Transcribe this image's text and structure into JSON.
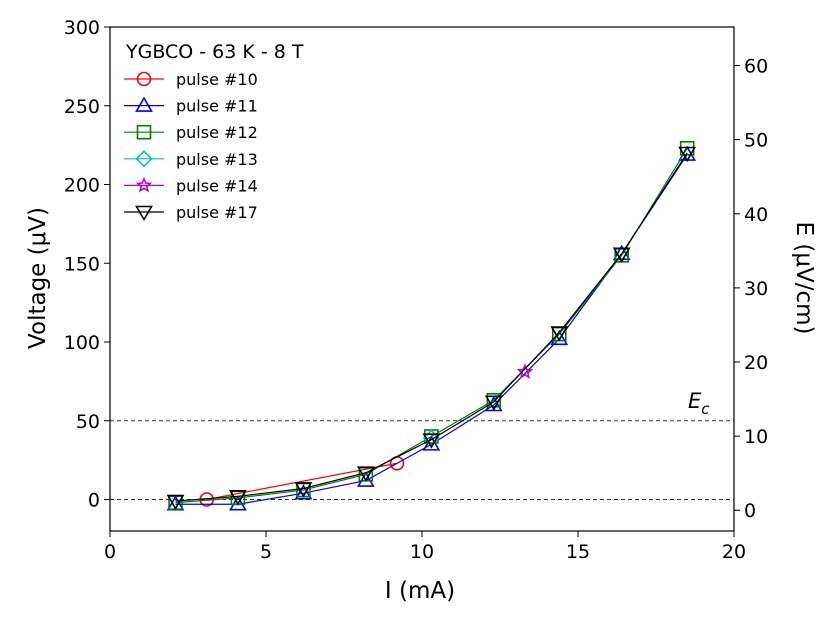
{
  "chart_data": {
    "type": "line",
    "title": "YGBCO - 63 K - 8 T",
    "xlabel": "I (mA)",
    "ylabel": "Voltage (μV)",
    "y2label": "E (μV/cm)",
    "xlim": [
      0,
      20
    ],
    "ylim": [
      -20,
      300
    ],
    "y2lim": [
      -2.8,
      65.2
    ],
    "xticks": [
      0,
      5,
      10,
      15,
      20
    ],
    "yticks": [
      0,
      50,
      100,
      150,
      200,
      250,
      300
    ],
    "y2ticks": [
      0,
      10,
      20,
      30,
      40,
      50,
      60
    ],
    "reference_lines": [
      {
        "y": 50,
        "label": "E",
        "label_sub": "c",
        "style": "dashed"
      },
      {
        "y": 0,
        "label": "",
        "label_sub": "",
        "style": "dashed"
      }
    ],
    "legend_position": "top-left",
    "series": [
      {
        "name": "pulse #10",
        "color": "#ff0000",
        "marker": "circle",
        "x": [
          3.1,
          9.2
        ],
        "y": [
          0,
          23
        ]
      },
      {
        "name": "pulse #11",
        "color": "#0000ff",
        "marker": "triangle-up",
        "x": [
          2.1,
          4.1,
          6.2,
          8.2,
          10.3,
          12.3,
          14.4,
          16.4,
          18.5
        ],
        "y": [
          -3,
          -3,
          4,
          12,
          35,
          60,
          102,
          156,
          219
        ]
      },
      {
        "name": "pulse #12",
        "color": "#008000",
        "marker": "square",
        "x": [
          2.1,
          4.1,
          6.2,
          8.2,
          10.3,
          12.3,
          14.4,
          16.4,
          18.5
        ],
        "y": [
          -2,
          1,
          6,
          16,
          40,
          63,
          105,
          155,
          223
        ]
      },
      {
        "name": "pulse #13",
        "color": "#00bfbf",
        "marker": "diamond",
        "x": [
          10.3
        ],
        "y": [
          39
        ]
      },
      {
        "name": "pulse #14",
        "color": "#bf00bf",
        "marker": "star",
        "x": [
          13.3
        ],
        "y": [
          81
        ]
      },
      {
        "name": "pulse #17",
        "color": "#000000",
        "marker": "triangle-down",
        "x": [
          2.1,
          4.1,
          6.2,
          8.2,
          10.3,
          12.3,
          14.4,
          16.4,
          18.5
        ],
        "y": [
          -1,
          2,
          7,
          17,
          38,
          62,
          106,
          156,
          220
        ]
      }
    ]
  }
}
